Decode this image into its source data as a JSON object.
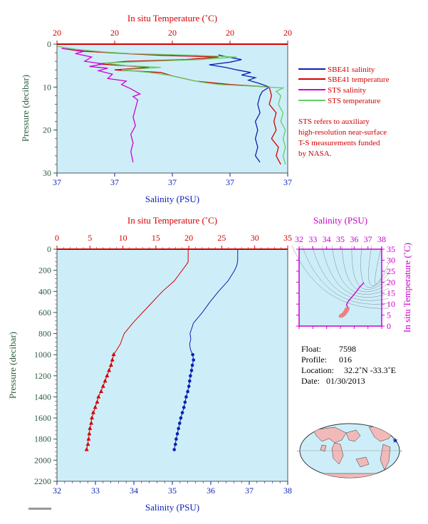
{
  "colors": {
    "plot_bg": "#cdeef8",
    "temperature": "#d40000",
    "salinity": "#0a1fb5",
    "sts_salinity": "#d000d0",
    "sts_temperature": "#66cc66",
    "pressure_axis": "#2d5a3d",
    "inset": "#cc00cc"
  },
  "chart_data": [
    {
      "type": "line",
      "id": "near-surface-profile",
      "top_axis_label": "In situ Temperature (˚C)",
      "top_ticks": [
        "20",
        "20",
        "20",
        "20",
        "20"
      ],
      "bottom_axis_label": "Salinity (PSU)",
      "bottom_ticks": [
        "37",
        "37",
        "37",
        "37",
        "37"
      ],
      "ylabel": "Pressure (decibar)",
      "ylim": [
        30,
        0
      ],
      "yticks": [
        "0",
        "10",
        "20",
        "30"
      ],
      "xlim": [
        0,
        1
      ],
      "x_note": "x values are fractions of the plotted axis range because the printed tick labels are identical",
      "legend_position": "right",
      "legend": [
        {
          "label": "SBE41 salinity",
          "color": "#0a1fb5"
        },
        {
          "label": "SBE41 temperature",
          "color": "#d40000"
        },
        {
          "label": "STS salinity",
          "color": "#d000d0"
        },
        {
          "label": "STS temperature",
          "color": "#66cc66"
        }
      ],
      "note_lines": [
        "STS refers to auxiliary",
        "high-resolution near-surface",
        "T-S measurements funded",
        "by NASA."
      ],
      "series": [
        {
          "name": "SBE41 salinity",
          "color": "#0a1fb5",
          "points": [
            [
              0.7,
              2.5
            ],
            [
              0.74,
              3.0
            ],
            [
              0.8,
              3.6
            ],
            [
              0.75,
              4.2
            ],
            [
              0.66,
              4.8
            ],
            [
              0.73,
              5.4
            ],
            [
              0.78,
              6.0
            ],
            [
              0.84,
              6.6
            ],
            [
              0.8,
              7.2
            ],
            [
              0.86,
              7.8
            ],
            [
              0.83,
              8.4
            ],
            [
              0.88,
              9.2
            ],
            [
              0.92,
              10.0
            ],
            [
              0.89,
              11.0
            ],
            [
              0.88,
              12.0
            ],
            [
              0.87,
              14.0
            ],
            [
              0.88,
              16.0
            ],
            [
              0.86,
              18.0
            ],
            [
              0.87,
              20.0
            ],
            [
              0.86,
              22.0
            ],
            [
              0.87,
              24.0
            ],
            [
              0.86,
              26.0
            ],
            [
              0.88,
              27.5
            ]
          ]
        },
        {
          "name": "SBE41 temperature",
          "color": "#d40000",
          "points": [
            [
              0.02,
              1.0
            ],
            [
              0.1,
              1.6
            ],
            [
              0.3,
              2.2
            ],
            [
              0.45,
              2.6
            ],
            [
              0.7,
              3.0
            ],
            [
              0.56,
              3.6
            ],
            [
              0.3,
              4.0
            ],
            [
              0.18,
              4.6
            ],
            [
              0.4,
              5.4
            ],
            [
              0.25,
              6.0
            ],
            [
              0.45,
              6.6
            ],
            [
              0.5,
              7.4
            ],
            [
              0.6,
              8.6
            ],
            [
              0.75,
              9.4
            ],
            [
              0.92,
              10.0
            ],
            [
              0.93,
              12.0
            ],
            [
              0.92,
              14.0
            ],
            [
              0.95,
              16.0
            ],
            [
              0.94,
              18.0
            ],
            [
              0.95,
              20.0
            ],
            [
              0.93,
              22.0
            ],
            [
              0.96,
              24.0
            ],
            [
              0.95,
              26.0
            ],
            [
              0.97,
              28.0
            ]
          ]
        },
        {
          "name": "STS salinity",
          "color": "#d000d0",
          "points": [
            [
              0.02,
              1.0
            ],
            [
              0.12,
              1.6
            ],
            [
              0.08,
              2.2
            ],
            [
              0.15,
              3.0
            ],
            [
              0.12,
              4.0
            ],
            [
              0.2,
              4.6
            ],
            [
              0.14,
              5.2
            ],
            [
              0.22,
              5.6
            ],
            [
              0.18,
              6.2
            ],
            [
              0.24,
              7.0
            ],
            [
              0.22,
              8.0
            ],
            [
              0.3,
              8.6
            ],
            [
              0.28,
              9.4
            ],
            [
              0.32,
              10.4
            ],
            [
              0.34,
              11.0
            ],
            [
              0.36,
              11.6
            ],
            [
              0.33,
              12.2
            ],
            [
              0.35,
              13.0
            ],
            [
              0.34,
              15.0
            ],
            [
              0.33,
              17.0
            ],
            [
              0.34,
              19.0
            ],
            [
              0.32,
              21.0
            ],
            [
              0.33,
              23.0
            ],
            [
              0.32,
              25.0
            ],
            [
              0.33,
              27.5
            ]
          ]
        },
        {
          "name": "STS temperature",
          "color": "#66cc66",
          "points": [
            [
              0.0,
              0.5
            ],
            [
              0.08,
              1.2
            ],
            [
              0.2,
              1.8
            ],
            [
              0.32,
              2.2
            ],
            [
              0.6,
              2.6
            ],
            [
              0.78,
              3.0
            ],
            [
              0.62,
              3.6
            ],
            [
              0.4,
              4.0
            ],
            [
              0.2,
              4.4
            ],
            [
              0.3,
              5.0
            ],
            [
              0.45,
              5.4
            ],
            [
              0.28,
              6.0
            ],
            [
              0.4,
              6.6
            ],
            [
              0.48,
              7.2
            ],
            [
              0.55,
              8.0
            ],
            [
              0.62,
              8.8
            ],
            [
              0.7,
              9.4
            ],
            [
              0.85,
              9.8
            ],
            [
              0.98,
              10.2
            ],
            [
              0.95,
              11.0
            ],
            [
              0.97,
              12.0
            ],
            [
              0.96,
              14.0
            ],
            [
              0.98,
              16.0
            ],
            [
              0.97,
              18.0
            ],
            [
              0.99,
              20.0
            ],
            [
              0.98,
              22.0
            ],
            [
              0.99,
              24.0
            ],
            [
              0.98,
              26.0
            ],
            [
              0.99,
              28.0
            ]
          ]
        }
      ]
    },
    {
      "type": "line",
      "id": "full-depth-profile",
      "top_axis_label": "In situ Temperature (˚C)",
      "temperature_xlim": [
        0,
        35
      ],
      "temperature_ticks": [
        0,
        5,
        10,
        15,
        20,
        25,
        30,
        35
      ],
      "bottom_axis_label": "Salinity (PSU)",
      "salinity_xlim": [
        32,
        38
      ],
      "salinity_ticks": [
        32,
        33,
        34,
        35,
        36,
        37,
        38
      ],
      "ylabel": "Pressure (decibar)",
      "ylim": [
        2200,
        0
      ],
      "yticks": [
        0,
        200,
        400,
        600,
        800,
        1000,
        1200,
        1400,
        1600,
        1800,
        2000,
        2200
      ],
      "series": [
        {
          "name": "Temperature",
          "color": "#d40000",
          "profile": [
            [
              0,
              19.9
            ],
            [
              50,
              19.9
            ],
            [
              120,
              19.9
            ],
            [
              150,
              19.6
            ],
            [
              200,
              19.0
            ],
            [
              300,
              17.8
            ],
            [
              400,
              16.0
            ],
            [
              500,
              14.5
            ],
            [
              600,
              13.0
            ],
            [
              700,
              11.5
            ],
            [
              800,
              10.2
            ],
            [
              900,
              9.6
            ],
            [
              1000,
              8.6
            ],
            [
              1100,
              8.2
            ],
            [
              1200,
              7.6
            ],
            [
              1300,
              7.0
            ],
            [
              1400,
              6.3
            ],
            [
              1500,
              5.8
            ],
            [
              1600,
              5.3
            ],
            [
              1700,
              5.0
            ],
            [
              1800,
              4.8
            ],
            [
              1900,
              4.5
            ]
          ],
          "markers": [
            [
              1000,
              8.6
            ],
            [
              1050,
              8.4
            ],
            [
              1100,
              8.2
            ],
            [
              1150,
              7.9
            ],
            [
              1200,
              7.6
            ],
            [
              1250,
              7.3
            ],
            [
              1300,
              7.0
            ],
            [
              1350,
              6.7
            ],
            [
              1400,
              6.3
            ],
            [
              1450,
              6.1
            ],
            [
              1500,
              5.8
            ],
            [
              1550,
              5.5
            ],
            [
              1600,
              5.3
            ],
            [
              1650,
              5.2
            ],
            [
              1700,
              5.0
            ],
            [
              1750,
              4.9
            ],
            [
              1800,
              4.8
            ],
            [
              1850,
              4.7
            ],
            [
              1900,
              4.5
            ]
          ]
        },
        {
          "name": "Salinity",
          "color": "#0a1fb5",
          "profile": [
            [
              0,
              36.7
            ],
            [
              100,
              36.7
            ],
            [
              150,
              36.68
            ],
            [
              200,
              36.62
            ],
            [
              300,
              36.45
            ],
            [
              400,
              36.2
            ],
            [
              500,
              35.98
            ],
            [
              600,
              35.78
            ],
            [
              700,
              35.55
            ],
            [
              800,
              35.46
            ],
            [
              850,
              35.48
            ],
            [
              900,
              35.45
            ],
            [
              950,
              35.47
            ],
            [
              1000,
              35.53
            ],
            [
              1050,
              35.55
            ],
            [
              1100,
              35.52
            ],
            [
              1200,
              35.47
            ],
            [
              1300,
              35.43
            ],
            [
              1400,
              35.36
            ],
            [
              1500,
              35.3
            ],
            [
              1600,
              35.22
            ],
            [
              1700,
              35.16
            ],
            [
              1800,
              35.1
            ],
            [
              1900,
              35.05
            ]
          ],
          "markers": [
            [
              1000,
              35.53
            ],
            [
              1050,
              35.55
            ],
            [
              1100,
              35.52
            ],
            [
              1150,
              35.5
            ],
            [
              1200,
              35.47
            ],
            [
              1250,
              35.45
            ],
            [
              1300,
              35.43
            ],
            [
              1350,
              35.4
            ],
            [
              1400,
              35.36
            ],
            [
              1450,
              35.33
            ],
            [
              1500,
              35.3
            ],
            [
              1550,
              35.26
            ],
            [
              1600,
              35.22
            ],
            [
              1650,
              35.19
            ],
            [
              1700,
              35.16
            ],
            [
              1750,
              35.13
            ],
            [
              1800,
              35.1
            ],
            [
              1850,
              35.08
            ],
            [
              1900,
              35.05
            ]
          ]
        }
      ]
    },
    {
      "type": "scatter",
      "id": "ts-diagram",
      "top_axis_label": "Salinity (PSU)",
      "xlim": [
        32,
        38
      ],
      "xticks": [
        32,
        33,
        34,
        35,
        36,
        37,
        38
      ],
      "right_axis_label": "In situ Temperature (˚C)",
      "ylim": [
        0,
        35
      ],
      "yticks": [
        0,
        5,
        10,
        15,
        20,
        25,
        30,
        35
      ],
      "series": [
        {
          "name": "Profile",
          "color": "#cc00cc",
          "points": [
            [
              36.7,
              19.9
            ],
            [
              36.6,
              19.0
            ],
            [
              36.4,
              17.8
            ],
            [
              36.2,
              16.0
            ],
            [
              36.0,
              14.5
            ],
            [
              35.8,
              13.0
            ],
            [
              35.6,
              11.5
            ],
            [
              35.47,
              10.2
            ],
            [
              35.45,
              9.6
            ],
            [
              35.53,
              8.6
            ],
            [
              35.5,
              7.9
            ],
            [
              35.45,
              7.3
            ],
            [
              35.4,
              6.7
            ],
            [
              35.33,
              6.1
            ],
            [
              35.26,
              5.5
            ],
            [
              35.19,
              5.2
            ],
            [
              35.13,
              4.9
            ],
            [
              35.05,
              4.5
            ]
          ]
        }
      ]
    }
  ],
  "info": {
    "float_label": "Float:",
    "float_value": "7598",
    "profile_label": "Profile:",
    "profile_value": "016",
    "location_label": "Location:",
    "location_value": "32.2˚N  -33.3˚E",
    "date_label": "Date:",
    "date_value": "01/30/2013"
  },
  "map": {
    "marker_lon": -33.3,
    "marker_lat": 32.2
  }
}
